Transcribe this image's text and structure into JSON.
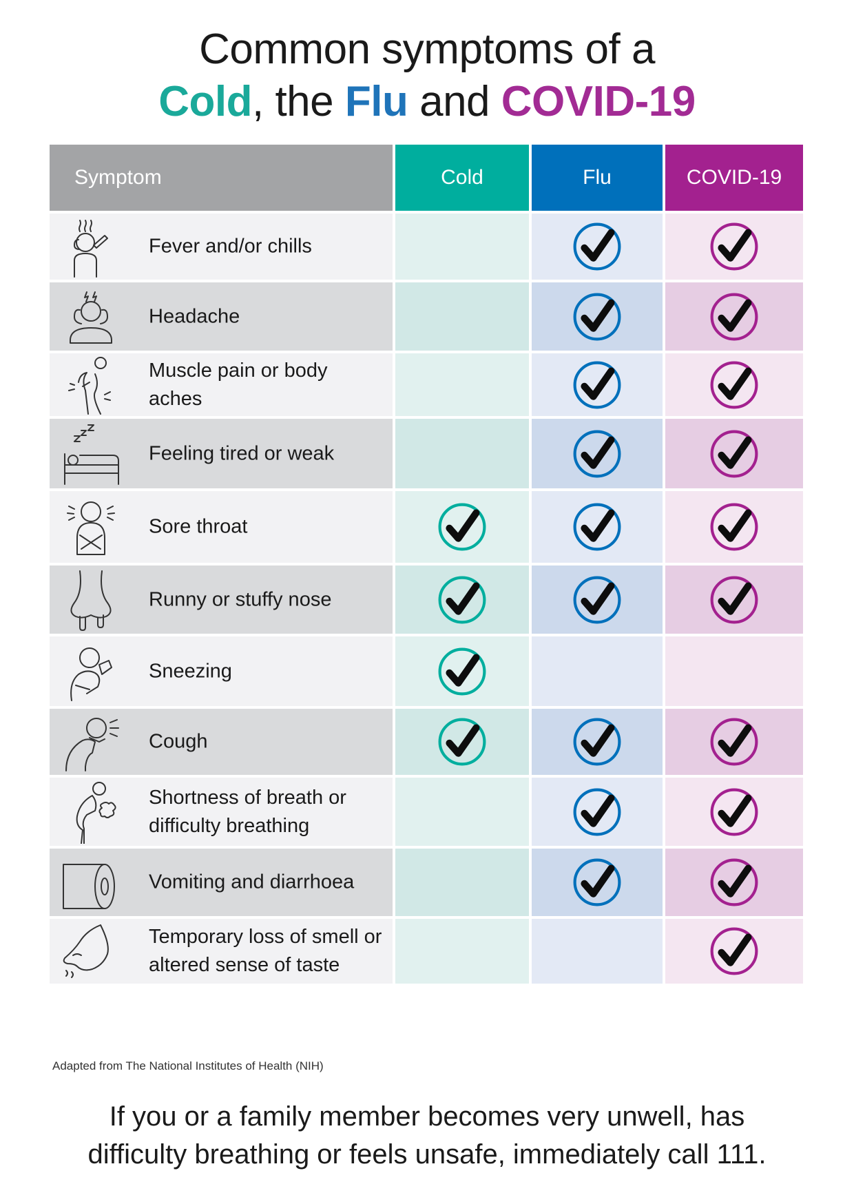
{
  "title": {
    "line1": "Common symptoms of a",
    "cold": "Cold",
    "sep1": ", the ",
    "flu": "Flu",
    "sep2": " and ",
    "covid": "COVID-19"
  },
  "colors": {
    "cold": "#00ae9e",
    "flu": "#0070bb",
    "covid": "#a3218f",
    "header_grey": "#a3a4a6"
  },
  "table": {
    "headers": {
      "symptom": "Symptom",
      "cold": "Cold",
      "flu": "Flu",
      "covid": "COVID-19"
    },
    "rows": [
      {
        "symptom": "Fever and/or chills",
        "icon": "fever-icon",
        "cold": false,
        "flu": true,
        "covid": true
      },
      {
        "symptom": "Headache",
        "icon": "headache-icon",
        "cold": false,
        "flu": true,
        "covid": true
      },
      {
        "symptom": "Muscle pain or body aches",
        "icon": "body-aches-icon",
        "cold": false,
        "flu": true,
        "covid": true
      },
      {
        "symptom": "Feeling tired or weak",
        "icon": "sleeping-bed-icon",
        "cold": false,
        "flu": true,
        "covid": true
      },
      {
        "symptom": "Sore throat",
        "icon": "sore-throat-icon",
        "cold": true,
        "flu": true,
        "covid": true
      },
      {
        "symptom": "Runny or stuffy nose",
        "icon": "runny-nose-icon",
        "cold": true,
        "flu": true,
        "covid": true
      },
      {
        "symptom": "Sneezing",
        "icon": "sneezing-icon",
        "cold": true,
        "flu": false,
        "covid": false
      },
      {
        "symptom": "Cough",
        "icon": "cough-icon",
        "cold": true,
        "flu": true,
        "covid": true
      },
      {
        "symptom": "Shortness of breath or difficulty breathing",
        "icon": "breathing-icon",
        "cold": false,
        "flu": true,
        "covid": true
      },
      {
        "symptom": "Vomiting and diarrhoea",
        "icon": "toilet-roll-icon",
        "cold": false,
        "flu": true,
        "covid": true
      },
      {
        "symptom": "Temporary loss of smell or altered sense of taste",
        "icon": "smell-taste-icon",
        "cold": false,
        "flu": false,
        "covid": true
      }
    ]
  },
  "source": "Adapted from The National Institutes of Health (NIH)",
  "warning": {
    "line1": "If you or a family member becomes very unwell, has",
    "line2": "difficulty breathing or feels unsafe, immediately call 111."
  }
}
